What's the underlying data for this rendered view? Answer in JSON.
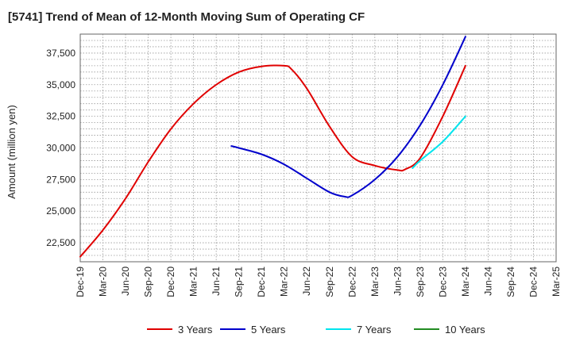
{
  "chart_data": {
    "type": "line",
    "title": "[5741]  Trend of Mean of 12-Month Moving Sum of Operating CF",
    "ylabel": "Amount (million yen)",
    "xlabel": "",
    "ylim": [
      21000,
      39000
    ],
    "yticks": [
      22500,
      25000,
      27500,
      30000,
      32500,
      35000,
      37500
    ],
    "ytick_labels": [
      "22,500",
      "25,000",
      "27,500",
      "30,000",
      "32,500",
      "35,000",
      "37,500"
    ],
    "xticks": [
      "Dec-19",
      "Mar-20",
      "Jun-20",
      "Sep-20",
      "Dec-20",
      "Mar-21",
      "Jun-21",
      "Sep-21",
      "Dec-21",
      "Mar-22",
      "Jun-22",
      "Sep-22",
      "Dec-22",
      "Mar-23",
      "Jun-23",
      "Sep-23",
      "Dec-23",
      "Mar-24",
      "Jun-24",
      "Sep-24",
      "Dec-24",
      "Mar-25"
    ],
    "grid": true,
    "legend_position": "bottom",
    "series": [
      {
        "name": "3 Years",
        "color": "#e00000",
        "x": [
          "Dec-19",
          "Mar-20",
          "Jun-20",
          "Sep-20",
          "Dec-20",
          "Mar-21",
          "Jun-21",
          "Sep-21",
          "Dec-21",
          "Mar-22",
          "Apr-22",
          "Jun-22",
          "Sep-22",
          "Dec-22",
          "Mar-23",
          "Jun-23",
          "Jul-23",
          "Sep-23",
          "Dec-23",
          "Mar-24"
        ],
        "values": [
          21400,
          23500,
          26000,
          28900,
          31500,
          33500,
          35000,
          36000,
          36450,
          36500,
          36200,
          34700,
          31700,
          29300,
          28600,
          28250,
          28300,
          29200,
          32500,
          36500
        ]
      },
      {
        "name": "5 Years",
        "color": "#0000cc",
        "x": [
          "Aug-21",
          "Sep-21",
          "Dec-21",
          "Mar-22",
          "Jun-22",
          "Sep-22",
          "Nov-22",
          "Dec-22",
          "Mar-23",
          "Jun-23",
          "Sep-23",
          "Dec-23",
          "Mar-24"
        ],
        "values": [
          30150,
          30000,
          29500,
          28700,
          27600,
          26500,
          26150,
          26250,
          27500,
          29300,
          31800,
          35000,
          38800
        ]
      },
      {
        "name": "7 Years",
        "color": "#00e5ee",
        "x": [
          "Aug-23",
          "Sep-23",
          "Dec-23",
          "Mar-24"
        ],
        "values": [
          28400,
          29000,
          30500,
          32500
        ]
      },
      {
        "name": "10 Years",
        "color": "#228b22",
        "x": [],
        "values": []
      }
    ]
  }
}
